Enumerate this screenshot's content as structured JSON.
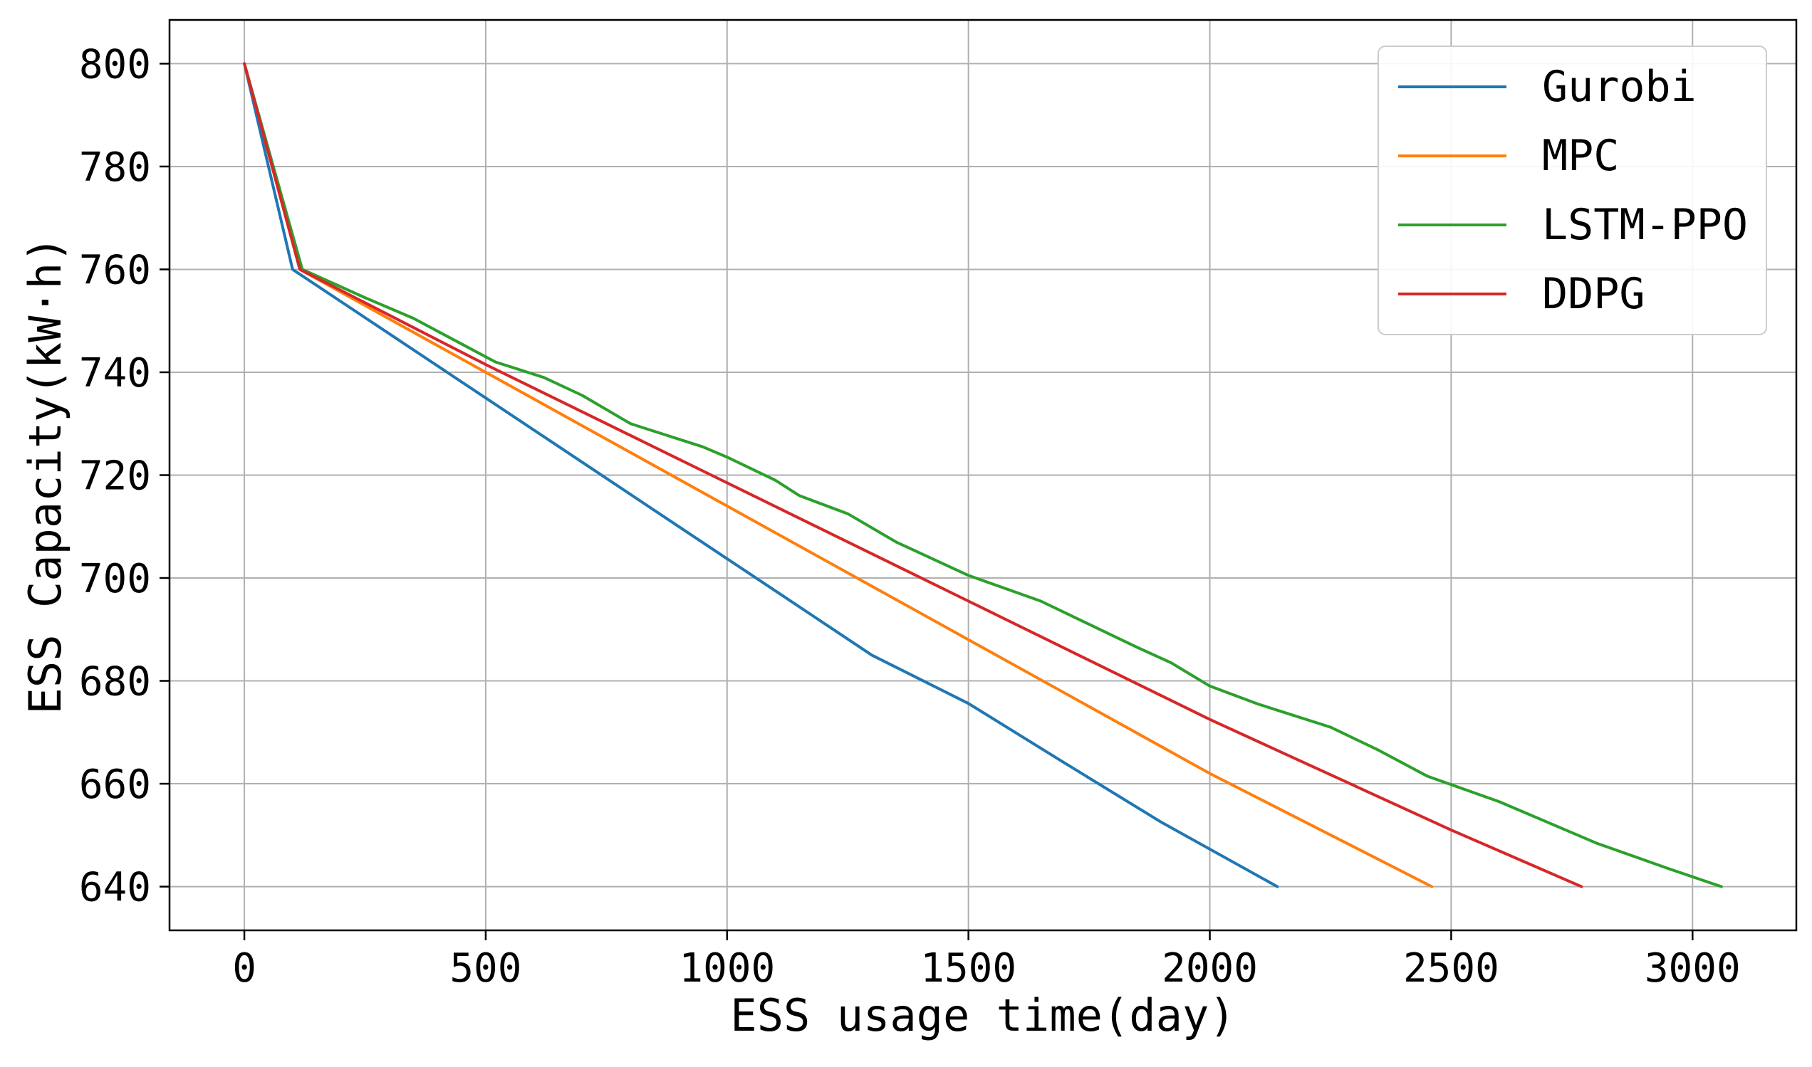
{
  "chart_data": {
    "type": "line",
    "xlabel": "ESS usage time(day)",
    "ylabel": "ESS Capacity(kW·h)",
    "xlim": [
      -155,
      3215
    ],
    "ylim": [
      631.5,
      808.5
    ],
    "x_ticks": [
      0,
      500,
      1000,
      1500,
      2000,
      2500,
      3000
    ],
    "y_ticks": [
      640,
      660,
      680,
      700,
      720,
      740,
      760,
      780,
      800
    ],
    "grid": true,
    "legend_position": "top-right",
    "series": [
      {
        "name": "Gurobi",
        "color": "#1f77b4",
        "x": [
          0,
          100,
          300,
          500,
          700,
          900,
          1100,
          1300,
          1500,
          1700,
          1900,
          2140
        ],
        "y": [
          800,
          760,
          747.5,
          735.0,
          722.5,
          710.0,
          697.5,
          685.0,
          675.6,
          664.0,
          652.5,
          640
        ]
      },
      {
        "name": "MPC",
        "color": "#ff7f0e",
        "x": [
          0,
          115,
          500,
          1000,
          1500,
          2000,
          2460
        ],
        "y": [
          800,
          760,
          740.0,
          714.0,
          688.0,
          662.0,
          640
        ]
      },
      {
        "name": "LSTM-PPO",
        "color": "#2ca02c",
        "x": [
          0,
          120,
          250,
          350,
          450,
          520,
          620,
          700,
          800,
          950,
          1000,
          1100,
          1150,
          1250,
          1350,
          1500,
          1650,
          1750,
          1850,
          1920,
          2000,
          2100,
          2250,
          2350,
          2450,
          2600,
          2700,
          2800,
          2950,
          3060
        ],
        "y": [
          800,
          760,
          754.5,
          750.5,
          745.5,
          742.0,
          739.0,
          735.5,
          730.0,
          725.5,
          723.5,
          719.0,
          716.0,
          712.5,
          707.0,
          700.5,
          695.5,
          691.0,
          686.5,
          683.5,
          679.0,
          675.5,
          671.0,
          666.5,
          661.5,
          656.5,
          652.5,
          648.5,
          643.5,
          640
        ]
      },
      {
        "name": "DDPG",
        "color": "#d62728",
        "x": [
          0,
          115,
          500,
          1000,
          1500,
          2000,
          2500,
          2770
        ],
        "y": [
          800,
          760,
          741.5,
          718.5,
          695.5,
          672.5,
          651.0,
          640
        ]
      }
    ]
  }
}
